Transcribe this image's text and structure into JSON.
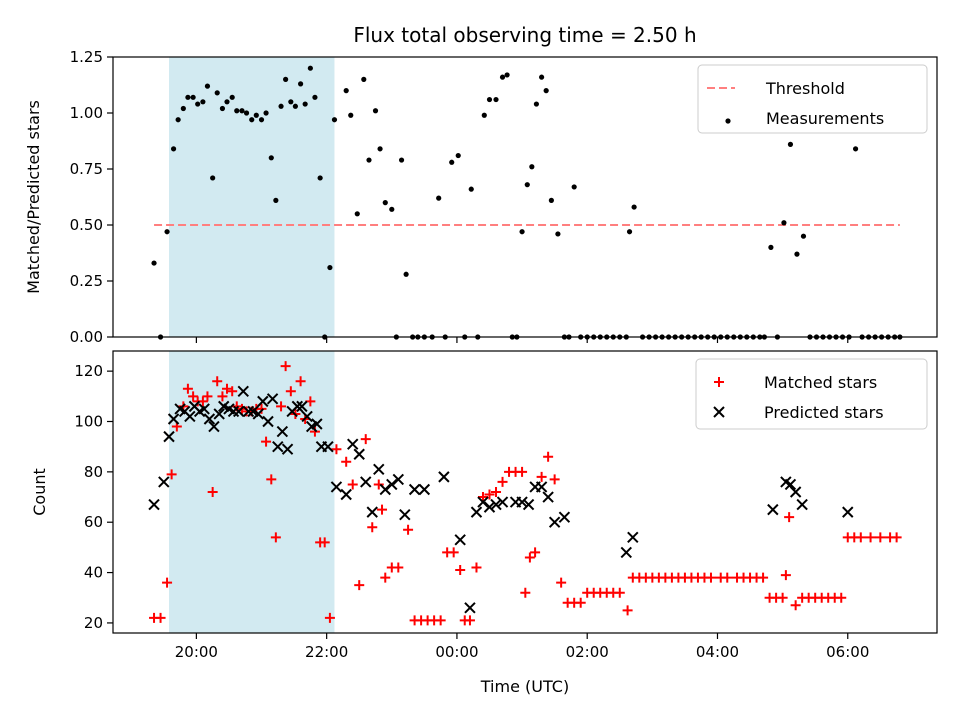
{
  "title": "Flux total observing time = 2.50 h",
  "x_axis": {
    "label": "Time (UTC)",
    "ticks": [
      {
        "value": 20.0,
        "label": "20:00"
      },
      {
        "value": 22.0,
        "label": "22:00"
      },
      {
        "value": 24.0,
        "label": "00:00"
      },
      {
        "value": 26.0,
        "label": "02:00"
      },
      {
        "value": 28.0,
        "label": "04:00"
      },
      {
        "value": 30.0,
        "label": "06:00"
      }
    ],
    "xlim_hours": [
      18.72,
      31.37
    ]
  },
  "chart_data": [
    {
      "type": "scatter",
      "panel": "top",
      "ylabel": "Matched/Predicted stars",
      "ylim": [
        0,
        1.25
      ],
      "yticks": [
        "0.00",
        "0.25",
        "0.50",
        "0.75",
        "1.00",
        "1.25"
      ],
      "yticks_values": [
        0,
        0.25,
        0.5,
        0.75,
        1.0,
        1.25
      ],
      "grid": false,
      "legend": "top-right",
      "shaded_region_hours": [
        19.58,
        22.12
      ],
      "shade_color": "#add8e6",
      "threshold": {
        "name": "Threshold",
        "value": 0.5,
        "x_range_hours": [
          19.35,
          30.8
        ],
        "color": "#ff7f7f"
      },
      "series": [
        {
          "name": "Measurements",
          "color": "#000000",
          "x_hours": [
            19.35,
            19.45,
            19.55,
            19.65,
            19.72,
            19.8,
            19.87,
            19.95,
            20.02,
            20.1,
            20.17,
            20.25,
            20.32,
            20.4,
            20.47,
            20.55,
            20.62,
            20.7,
            20.77,
            20.85,
            20.92,
            21.0,
            21.07,
            21.15,
            21.22,
            21.3,
            21.37,
            21.45,
            21.52,
            21.6,
            21.67,
            21.75,
            21.82,
            21.9,
            21.97,
            22.05,
            22.12,
            22.3,
            22.37,
            22.47,
            22.57,
            22.65,
            22.75,
            22.82,
            22.9,
            23.0,
            23.07,
            23.15,
            23.22,
            23.32,
            23.4,
            23.5,
            23.62,
            23.72,
            23.82,
            23.92,
            24.02,
            24.12,
            24.22,
            24.32,
            24.42,
            24.5,
            24.6,
            24.7,
            24.77,
            24.85,
            24.92,
            25.0,
            25.08,
            25.15,
            25.22,
            25.3,
            25.37,
            25.45,
            25.55,
            25.65,
            25.72,
            25.8,
            25.9,
            26.0,
            26.1,
            26.2,
            26.3,
            26.4,
            26.5,
            26.6,
            26.65,
            26.72,
            26.85,
            26.95,
            27.05,
            27.15,
            27.25,
            27.35,
            27.45,
            27.55,
            27.65,
            27.75,
            27.85,
            27.95,
            28.05,
            28.15,
            28.25,
            28.35,
            28.45,
            28.55,
            28.65,
            28.72,
            28.82,
            28.92,
            29.02,
            29.12,
            29.22,
            29.32,
            29.42,
            29.52,
            29.62,
            29.72,
            29.82,
            29.92,
            30.02,
            30.12,
            30.22,
            30.32,
            30.42,
            30.52,
            30.62,
            30.72,
            30.8
          ],
          "y": [
            0.33,
            0.0,
            0.47,
            0.84,
            0.97,
            1.02,
            1.07,
            1.07,
            1.04,
            1.05,
            1.12,
            0.71,
            1.09,
            1.02,
            1.05,
            1.07,
            1.01,
            1.01,
            1.0,
            0.97,
            0.99,
            0.97,
            1.0,
            0.8,
            0.61,
            1.03,
            1.15,
            1.05,
            1.03,
            1.13,
            1.04,
            1.2,
            1.07,
            0.71,
            0.0,
            0.31,
            0.97,
            1.1,
            0.99,
            0.55,
            1.15,
            0.79,
            1.01,
            0.84,
            0.6,
            0.57,
            0.0,
            0.79,
            0.28,
            0.0,
            0.0,
            0.0,
            0.0,
            0.62,
            0.0,
            0.78,
            0.81,
            0.0,
            0.66,
            0.0,
            0.99,
            1.06,
            1.06,
            1.16,
            1.17,
            0.0,
            0.0,
            0.47,
            0.68,
            0.76,
            1.04,
            1.16,
            1.1,
            0.61,
            0.46,
            0.0,
            0.0,
            0.67,
            0.0,
            0.0,
            0.0,
            0.0,
            0.0,
            0.0,
            0.0,
            0.0,
            0.47,
            0.58,
            0.0,
            0.0,
            0.0,
            0.0,
            0.0,
            0.0,
            0.0,
            0.0,
            0.0,
            0.0,
            0.0,
            0.0,
            0.0,
            0.0,
            0.0,
            0.0,
            0.0,
            0.0,
            0.0,
            0.0,
            0.4,
            0.0,
            0.51,
            0.86,
            0.37,
            0.45,
            0.0,
            0.0,
            0.0,
            0.0,
            0.0,
            0.0,
            0.0,
            0.84,
            0.0,
            0.0,
            0.0,
            0.0,
            0.0,
            0.0,
            0.0
          ]
        }
      ]
    },
    {
      "type": "scatter",
      "panel": "bottom",
      "ylabel": "Count",
      "ylim": [
        16,
        128
      ],
      "yticks": [
        "20",
        "40",
        "60",
        "80",
        "100",
        "120"
      ],
      "yticks_values": [
        20,
        40,
        60,
        80,
        100,
        120
      ],
      "grid": false,
      "legend": "top-right",
      "shaded_region_hours": [
        19.58,
        22.12
      ],
      "shade_color": "#add8e6",
      "series": [
        {
          "name": "Matched stars",
          "marker": "+",
          "color": "#ff0000",
          "x_hours": [
            19.35,
            19.45,
            19.55,
            19.62,
            19.7,
            19.8,
            19.87,
            19.95,
            20.02,
            20.1,
            20.17,
            20.25,
            20.32,
            20.4,
            20.47,
            20.55,
            20.62,
            20.7,
            20.77,
            20.85,
            20.92,
            21.0,
            21.07,
            21.15,
            21.22,
            21.3,
            21.37,
            21.45,
            21.52,
            21.6,
            21.67,
            21.75,
            21.82,
            21.9,
            21.97,
            22.05,
            22.15,
            22.3,
            22.4,
            22.5,
            22.6,
            22.7,
            22.8,
            22.85,
            22.9,
            23.0,
            23.1,
            23.25,
            23.35,
            23.45,
            23.55,
            23.65,
            23.75,
            23.85,
            23.95,
            24.05,
            24.12,
            24.2,
            24.3,
            24.4,
            24.5,
            24.6,
            24.7,
            24.8,
            24.9,
            25.0,
            25.05,
            25.12,
            25.2,
            25.3,
            25.4,
            25.5,
            25.6,
            25.7,
            25.8,
            25.9,
            26.0,
            26.1,
            26.2,
            26.3,
            26.4,
            26.5,
            26.62,
            26.7,
            26.8,
            26.9,
            27.0,
            27.1,
            27.2,
            27.3,
            27.4,
            27.5,
            27.6,
            27.7,
            27.8,
            27.9,
            28.05,
            28.15,
            28.3,
            28.4,
            28.5,
            28.6,
            28.7,
            28.8,
            28.9,
            29.0,
            29.05,
            29.1,
            29.2,
            29.3,
            29.4,
            29.5,
            29.6,
            29.7,
            29.8,
            29.9,
            30.0,
            30.1,
            30.2,
            30.35,
            30.5,
            30.65,
            30.75
          ],
          "y": [
            22,
            22,
            36,
            79,
            98,
            106,
            113,
            110,
            108,
            108,
            110,
            72,
            116,
            110,
            113,
            112,
            106,
            105,
            104,
            104,
            105,
            105,
            92,
            77,
            54,
            106,
            122,
            112,
            103,
            116,
            101,
            108,
            96,
            52,
            52,
            22,
            89,
            84,
            75,
            35,
            93,
            58,
            75,
            65,
            38,
            42,
            42,
            57,
            21,
            21,
            21,
            21,
            21,
            48,
            48,
            41,
            21,
            21,
            42,
            70,
            71,
            72,
            76,
            80,
            80,
            80,
            32,
            46,
            48,
            78,
            86,
            77,
            36,
            28,
            28,
            28,
            32,
            32,
            32,
            32,
            32,
            32,
            25,
            38,
            38,
            38,
            38,
            38,
            38,
            38,
            38,
            38,
            38,
            38,
            38,
            38,
            38,
            38,
            38,
            38,
            38,
            38,
            38,
            30,
            30,
            30,
            39,
            62,
            27,
            30,
            30,
            30,
            30,
            30,
            30,
            30,
            54,
            54,
            54,
            54,
            54,
            54,
            54
          ]
        },
        {
          "name": "Predicted stars",
          "marker": "x",
          "color": "#000000",
          "x_hours": [
            19.35,
            19.5,
            19.58,
            19.65,
            19.75,
            19.82,
            19.9,
            19.97,
            20.05,
            20.12,
            20.2,
            20.27,
            20.35,
            20.42,
            20.5,
            20.57,
            20.65,
            20.72,
            20.8,
            20.87,
            20.95,
            21.02,
            21.1,
            21.17,
            21.25,
            21.32,
            21.4,
            21.47,
            21.55,
            21.62,
            21.7,
            21.77,
            21.85,
            21.92,
            22.02,
            22.15,
            22.3,
            22.4,
            22.5,
            22.6,
            22.7,
            22.8,
            22.9,
            23.0,
            23.1,
            23.2,
            23.35,
            23.5,
            23.8,
            24.05,
            24.2,
            24.3,
            24.4,
            24.5,
            24.6,
            24.7,
            24.9,
            25.0,
            25.1,
            25.2,
            25.3,
            25.4,
            25.5,
            25.65,
            26.6,
            26.7,
            28.85,
            29.05,
            29.12,
            29.2,
            29.3,
            30.0
          ],
          "y": [
            67,
            76,
            94,
            101,
            105,
            104,
            102,
            106,
            104,
            105,
            101,
            98,
            103,
            106,
            105,
            104,
            104,
            112,
            104,
            104,
            103,
            108,
            100,
            109,
            90,
            96,
            89,
            104,
            106,
            106,
            102,
            98,
            99,
            90,
            90,
            74,
            71,
            91,
            87,
            76,
            64,
            81,
            73,
            75,
            77,
            63,
            73,
            73,
            78,
            53,
            26,
            64,
            68,
            66,
            67,
            68,
            68,
            68,
            67,
            74,
            74,
            70,
            60,
            62,
            48,
            54,
            65,
            76,
            75,
            72,
            67,
            64
          ]
        }
      ]
    }
  ]
}
